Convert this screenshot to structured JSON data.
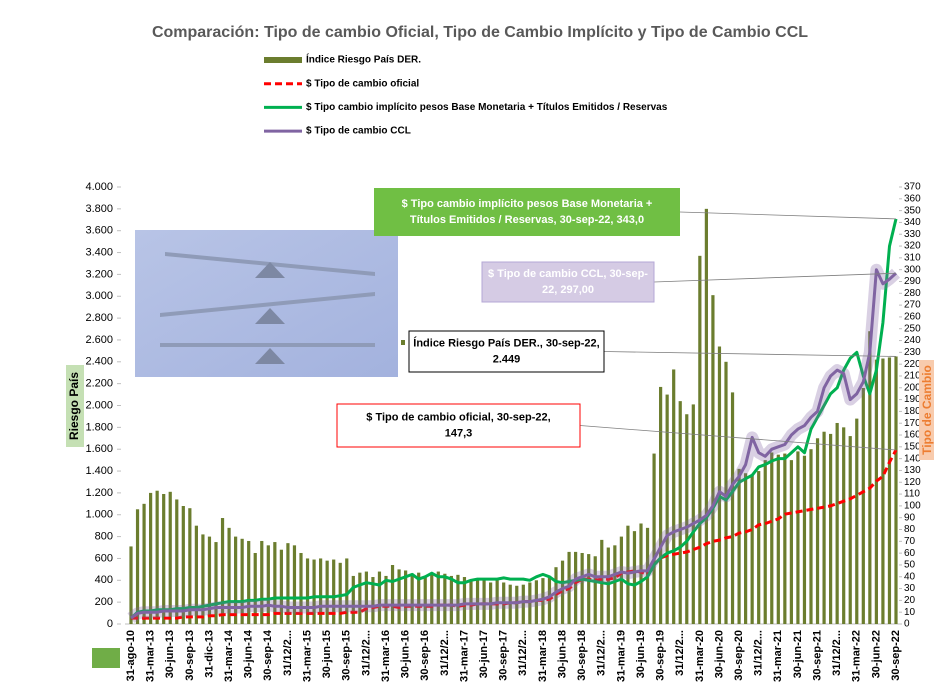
{
  "chart_data": {
    "type": "bar_line",
    "title": "Comparación: Tipo de cambio Oficial, Tipo de Cambio Implícito y Tipo de Cambio CCL",
    "ylabel": "Riesgo País",
    "y2label": "Tipo de Cambio",
    "legend": "top",
    "categories": [
      "31-ago-10",
      null,
      null,
      "31-mar-13",
      null,
      null,
      "30-jun-13",
      null,
      null,
      "30-sep-13",
      null,
      null,
      "31-dic-13",
      null,
      null,
      "31-mar-14",
      null,
      null,
      "30-jun-14",
      null,
      null,
      "30-sep-14",
      null,
      null,
      "31/12/2...",
      null,
      null,
      "31-mar-15",
      null,
      null,
      "30-jun-15",
      null,
      null,
      "30-sep-15",
      null,
      null,
      "31/12/2...",
      null,
      null,
      "31-mar-16",
      null,
      null,
      "30-jun-16",
      null,
      null,
      "30-sep-16",
      null,
      null,
      "31/12/2...",
      null,
      null,
      "31-mar-17",
      null,
      null,
      "30-jun-17",
      null,
      null,
      "30-sep-17",
      null,
      null,
      "31/12/2...",
      null,
      null,
      "31-mar-18",
      null,
      null,
      "30-jun-18",
      null,
      null,
      "30-sep-18",
      null,
      null,
      "31/12/2...",
      null,
      null,
      "31-mar-19",
      null,
      null,
      "30-jun-19",
      null,
      null,
      "30-sep-19",
      null,
      null,
      "31/12/2...",
      null,
      null,
      "31-mar-20",
      null,
      null,
      "30-jun-20",
      null,
      null,
      "30-sep-20",
      null,
      null,
      "31/12/2...",
      null,
      null,
      "31-mar-21",
      null,
      null,
      "30-jun-21",
      null,
      null,
      "30-sep-21",
      null,
      null,
      "31/12/2...",
      null,
      null,
      "31-mar-22",
      null,
      null,
      "30-jun-22",
      null,
      null,
      "30-sep-22"
    ],
    "series": [
      {
        "name": "Índice Riesgo País DER.",
        "type": "bar",
        "axis": "y",
        "color": "#6b7d2e",
        "values": [
          710,
          1050,
          1100,
          1200,
          1220,
          1190,
          1210,
          1140,
          1080,
          1060,
          900,
          820,
          800,
          750,
          970,
          880,
          800,
          780,
          760,
          650,
          760,
          720,
          750,
          680,
          740,
          720,
          650,
          600,
          590,
          600,
          580,
          590,
          560,
          600,
          440,
          470,
          480,
          430,
          480,
          440,
          540,
          500,
          490,
          460,
          470,
          440,
          460,
          480,
          460,
          440,
          450,
          430,
          400,
          420,
          420,
          380,
          400,
          380,
          360,
          350,
          360,
          380,
          400,
          420,
          440,
          520,
          580,
          660,
          660,
          650,
          640,
          620,
          770,
          700,
          720,
          800,
          900,
          850,
          920,
          880,
          1560,
          2170,
          2100,
          2330,
          2040,
          1920,
          2010,
          3370,
          3800,
          3010,
          2540,
          2400,
          2120,
          1420,
          1380,
          1370,
          1400,
          1500,
          1570,
          1550,
          1560,
          1500,
          1580,
          1540,
          1600,
          1700,
          1760,
          1740,
          1840,
          1800,
          1720,
          1880,
          2160,
          2680,
          2420,
          2430,
          2440,
          2449
        ]
      },
      {
        "name": "$ Tipo de cambio oficial",
        "type": "line",
        "axis": "y2",
        "color": "#ff0000",
        "line_style": "dashed",
        "values": [
          5,
          5,
          5,
          5,
          5,
          5,
          5,
          5,
          6,
          6,
          6,
          6,
          7,
          7,
          8,
          8,
          8,
          8,
          8,
          8,
          8,
          8,
          9,
          9,
          9,
          9,
          9,
          9,
          9,
          9,
          9,
          9,
          9,
          10,
          10,
          10,
          13,
          14,
          15,
          15,
          15,
          14,
          15,
          15,
          15,
          15,
          15,
          16,
          16,
          16,
          15,
          16,
          16,
          17,
          17,
          17,
          17,
          17,
          18,
          18,
          19,
          19,
          20,
          20,
          21,
          25,
          28,
          30,
          35,
          38,
          38,
          37,
          38,
          38,
          39,
          43,
          44,
          45,
          44,
          42,
          50,
          56,
          58,
          59,
          60,
          61,
          63,
          65,
          68,
          70,
          71,
          73,
          74,
          77,
          78,
          80,
          84,
          85,
          87,
          89,
          93,
          94,
          95,
          96,
          97,
          98,
          99,
          100,
          102,
          104,
          106,
          109,
          112,
          115,
          121,
          125,
          137,
          147.3
        ]
      },
      {
        "name": "$ Tipo cambio implícito pesos Base Monetaria + Títulos Emitidos / Reservas",
        "type": "line",
        "axis": "y2",
        "color": "#00b050",
        "line_style": "solid",
        "values": [
          5,
          10,
          11,
          11,
          12,
          12,
          12,
          13,
          13,
          14,
          14,
          15,
          16,
          17,
          18,
          19,
          19,
          19,
          20,
          20,
          21,
          21,
          22,
          22,
          22,
          22,
          22,
          22,
          23,
          23,
          23,
          23,
          24,
          25,
          31,
          33,
          35,
          34,
          33,
          37,
          36,
          38,
          40,
          42,
          38,
          40,
          43,
          40,
          40,
          38,
          35,
          35,
          37,
          38,
          38,
          38,
          38,
          39,
          38,
          38,
          38,
          37,
          40,
          42,
          40,
          36,
          35,
          36,
          37,
          38,
          37,
          36,
          35,
          34,
          36,
          38,
          34,
          33,
          36,
          40,
          50,
          56,
          60,
          62,
          65,
          70,
          78,
          85,
          90,
          98,
          108,
          105,
          112,
          120,
          123,
          126,
          133,
          135,
          138,
          140,
          140,
          145,
          150,
          145,
          165,
          175,
          185,
          195,
          200,
          215,
          225,
          230,
          210,
          195,
          215,
          255,
          320,
          343
        ]
      },
      {
        "name": "$ Tipo de cambio CCL",
        "type": "line",
        "axis": "y2",
        "color": "#8064a2",
        "line_style": "solid",
        "glow": true,
        "values": [
          5,
          9,
          10,
          10,
          10,
          11,
          11,
          11,
          11,
          12,
          12,
          12,
          13,
          14,
          14,
          14,
          14,
          14,
          15,
          15,
          15,
          16,
          15,
          15,
          14,
          14,
          14,
          14,
          14,
          15,
          15,
          15,
          15,
          15,
          15,
          15,
          15,
          15,
          16,
          16,
          16,
          16,
          16,
          16,
          16,
          16,
          16,
          16,
          16,
          16,
          16,
          17,
          17,
          17,
          17,
          17,
          18,
          18,
          18,
          18,
          19,
          19,
          20,
          21,
          23,
          27,
          30,
          32,
          38,
          40,
          42,
          40,
          40,
          40,
          42,
          44,
          43,
          44,
          45,
          45,
          55,
          65,
          75,
          78,
          80,
          82,
          85,
          88,
          92,
          100,
          112,
          108,
          118,
          125,
          135,
          158,
          145,
          142,
          148,
          150,
          152,
          160,
          165,
          168,
          175,
          180,
          200,
          210,
          215,
          212,
          190,
          195,
          205,
          230,
          300,
          288,
          292,
          297
        ]
      }
    ],
    "ylim": [
      0,
      4000
    ],
    "yticks": [
      0,
      200,
      400,
      600,
      800,
      {
        "value": 1000,
        "label": "1.000"
      },
      {
        "value": 1200,
        "label": "1.200"
      },
      {
        "value": 1400,
        "label": "1.400"
      },
      {
        "value": 1600,
        "label": "1.600"
      },
      {
        "value": 1800,
        "label": "1.800"
      },
      {
        "value": 2000,
        "label": "2.000"
      },
      {
        "value": 2200,
        "label": "2.200"
      },
      {
        "value": 2400,
        "label": "2.400"
      },
      {
        "value": 2600,
        "label": "2.600"
      },
      {
        "value": 2800,
        "label": "2.800"
      },
      {
        "value": 3000,
        "label": "3.000"
      },
      {
        "value": 3200,
        "label": "3.200"
      },
      {
        "value": 3400,
        "label": "3.400"
      },
      {
        "value": 3600,
        "label": "3.600"
      },
      {
        "value": 3800,
        "label": "3.800"
      },
      {
        "value": 4000,
        "label": "4.000"
      }
    ],
    "y2lim": [
      0,
      370
    ],
    "y2ticks": [
      0,
      10,
      20,
      30,
      40,
      50,
      60,
      70,
      80,
      90,
      100,
      110,
      120,
      130,
      140,
      150,
      160,
      170,
      180,
      190,
      200,
      210,
      220,
      230,
      240,
      250,
      260,
      270,
      280,
      290,
      300,
      310,
      320,
      330,
      340,
      350,
      360,
      370
    ],
    "annotations": [
      {
        "series": 2,
        "lines": [
          "$ Tipo cambio implícito pesos Base Monetaria +",
          "Títulos Emitidos / Reservas, 30-sep-22,  343,0"
        ]
      },
      {
        "series": 3,
        "lines": [
          "$ Tipo de cambio CCL, 30-sep-",
          "22,  297,00"
        ]
      },
      {
        "series": 0,
        "lines": [
          "Índice Riesgo País DER., 30-sep-22,",
          "2.449"
        ]
      },
      {
        "series": 1,
        "lines": [
          "$ Tipo de cambio oficial, 30-sep-22,",
          "147,3"
        ]
      }
    ]
  }
}
